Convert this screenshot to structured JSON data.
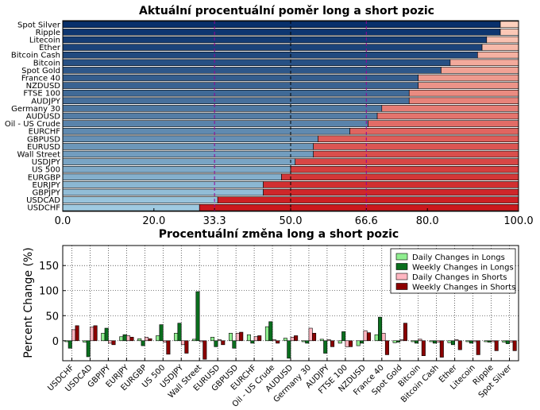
{
  "chart_data": [
    {
      "type": "bar",
      "orientation": "horizontal-stacked",
      "title": "Aktuální procentuální poměr long a short pozic",
      "categories": [
        "Spot Silver",
        "Ripple",
        "Litecoin",
        "Ether",
        "Bitcoin Cash",
        "Bitcoin",
        "Spot Gold",
        "France 40",
        "NZDUSD",
        "FTSE 100",
        "AUDJPY",
        "Germany 30",
        "AUDUSD",
        "Oil - US Crude",
        "EURCHF",
        "GBPUSD",
        "EURUSD",
        "Wall Street",
        "USDJPY",
        "US 500",
        "EURGBP",
        "EURJPY",
        "GBPJPY",
        "USDCAD",
        "USDCHF"
      ],
      "series": [
        {
          "values": [
            96,
            96,
            93,
            92,
            91,
            85,
            83,
            78,
            78,
            76,
            76,
            70,
            69,
            67,
            63,
            56,
            55,
            55,
            51,
            50,
            48,
            44,
            44,
            34,
            30
          ]
        },
        {
          "values": [
            4,
            4,
            7,
            8,
            9,
            15,
            17,
            22,
            22,
            24,
            24,
            30,
            31,
            33,
            37,
            44,
            45,
            45,
            49,
            50,
            52,
            56,
            56,
            66,
            70
          ]
        }
      ],
      "xlim": [
        0,
        100
      ],
      "xticks": [
        "0.0",
        "20.0",
        "33.3",
        "50.0",
        "66.6",
        "80.0",
        "100.0"
      ],
      "reference_lines": [
        33.3,
        50.0,
        66.6
      ],
      "colors": {
        "long_dark": "#08306b",
        "long_light": "#9ecae1",
        "short_light": "#fdd0bd",
        "short_dark": "#cb181d",
        "ref_purple": "#990099"
      }
    },
    {
      "type": "bar",
      "title": "Procentuální změna long a short pozic",
      "ylabel": "Percent Change (%)",
      "categories": [
        "USDCHF",
        "USDCAD",
        "GBPJPY",
        "EURJPY",
        "EURGBP",
        "US 500",
        "USDJPY",
        "Wall Street",
        "EURUSD",
        "GBPUSD",
        "EURCHF",
        "Oil - US Crude",
        "AUDUSD",
        "Germany 30",
        "AUDJPY",
        "FTSE 100",
        "NZDUSD",
        "France 40",
        "Spot Gold",
        "Bitcoin",
        "Bitcoin Cash",
        "Ether",
        "Litecoin",
        "Ripple",
        "Spot Silver"
      ],
      "series": [
        {
          "name": "Daily Changes in Longs",
          "color": "#90ee90",
          "values": [
            -2,
            -3,
            15,
            8,
            4,
            10,
            15,
            3,
            7,
            15,
            12,
            28,
            5,
            -2,
            3,
            -5,
            -10,
            12,
            -4,
            -2,
            -2,
            -4,
            -2,
            -2,
            -3
          ]
        },
        {
          "name": "Weekly Changes in Longs",
          "color": "#0a6e1e",
          "values": [
            -15,
            -32,
            25,
            12,
            -10,
            32,
            35,
            98,
            -12,
            -15,
            -5,
            38,
            -35,
            -5,
            -25,
            18,
            -5,
            47,
            -3,
            -5,
            -5,
            -8,
            -5,
            -3,
            -6
          ]
        },
        {
          "name": "Daily Changes in Shorts",
          "color": "#ffb6c1",
          "values": [
            22,
            27,
            -5,
            10,
            7,
            -3,
            -8,
            -2,
            2,
            15,
            8,
            2,
            7,
            25,
            2,
            -12,
            20,
            15,
            2,
            3,
            -3,
            2,
            -2,
            -2,
            -3
          ]
        },
        {
          "name": "Weekly Changes in Shorts",
          "color": "#8b0000",
          "values": [
            30,
            30,
            -8,
            7,
            4,
            -27,
            -25,
            -37,
            -8,
            17,
            10,
            -5,
            10,
            15,
            -12,
            -12,
            16,
            -28,
            35,
            -30,
            -33,
            -18,
            -28,
            -20,
            -20
          ]
        }
      ],
      "ylim": [
        -40,
        190
      ],
      "yticks": [
        "0",
        "50",
        "100",
        "150"
      ],
      "grid": true,
      "legend": "top-right"
    }
  ]
}
